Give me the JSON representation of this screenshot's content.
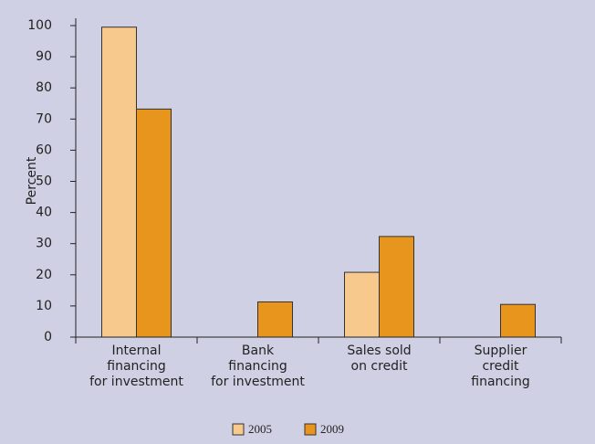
{
  "chart_data": {
    "type": "bar",
    "y_label": "Percent",
    "categories": [
      [
        "Internal",
        "financing",
        "for investment"
      ],
      [
        "Bank",
        "financing",
        "for investment"
      ],
      [
        "Sales sold",
        "on credit"
      ],
      [
        "Supplier",
        "credit",
        "financing"
      ]
    ],
    "series": [
      {
        "name": "2005",
        "color": "#f7c98c",
        "values": [
          99.5,
          null,
          20.8,
          null
        ]
      },
      {
        "name": "2009",
        "color": "#e8951e",
        "values": [
          73.2,
          11.3,
          32.3,
          10.5
        ]
      }
    ],
    "ylim": [
      0,
      100
    ],
    "yticks": [
      0,
      10,
      20,
      30,
      40,
      50,
      60,
      70,
      80,
      90,
      100
    ],
    "legend": "bottom"
  }
}
